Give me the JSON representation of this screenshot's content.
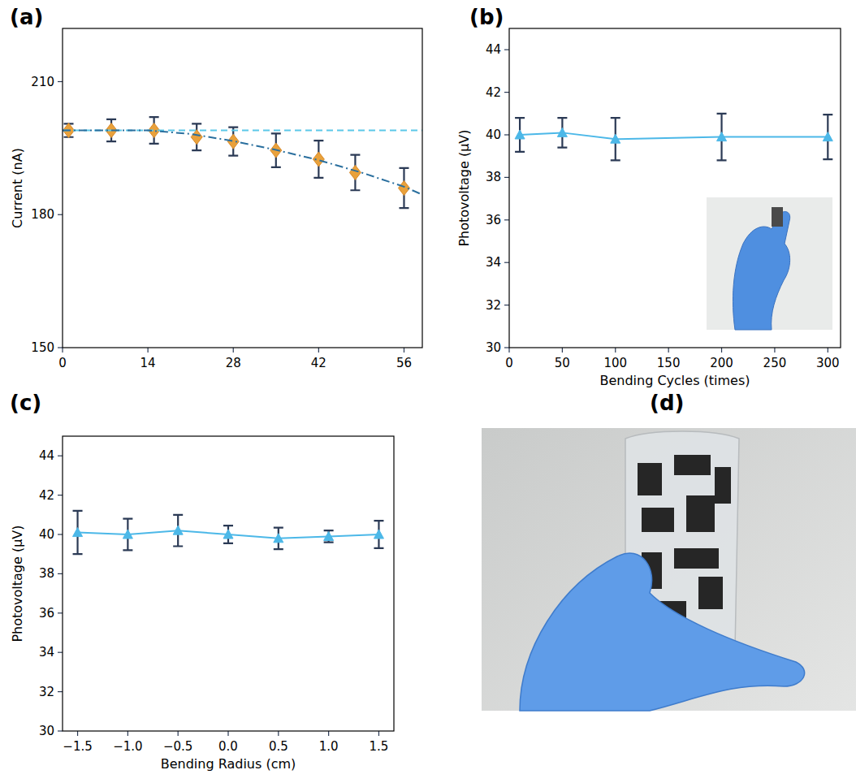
{
  "chart_data": [
    {
      "type": "scatter",
      "panel_label": "(a)",
      "y_label": "Current (nA)",
      "xlim": [
        0,
        59
      ],
      "xticks": [
        0,
        14,
        28,
        42,
        56
      ],
      "ylim": [
        150,
        222
      ],
      "yticks": [
        150,
        180,
        210
      ],
      "series": [
        {
          "type": "scatter",
          "marker": "diamond",
          "color": "#e9a13b",
          "x": [
            1,
            8,
            15,
            22,
            28,
            35,
            42,
            48,
            56
          ],
          "values": [
            199,
            199,
            199,
            197.5,
            196.5,
            194.5,
            192.5,
            189.5,
            186
          ],
          "errors": [
            1.5,
            2.5,
            3,
            3,
            3.2,
            3.8,
            4.2,
            4,
            4.5
          ]
        },
        {
          "type": "line",
          "line_style": "dashed",
          "color": "#5bc8e8",
          "x": [
            0,
            59
          ],
          "values": [
            199,
            199
          ]
        },
        {
          "type": "line",
          "line_style": "dashdot",
          "color": "#2a6f9e",
          "x": [
            0,
            7,
            14,
            21,
            28,
            35,
            42,
            49,
            56,
            59
          ],
          "values": [
            199,
            199,
            199,
            198.2,
            196.6,
            194.6,
            192.3,
            189.5,
            186.3,
            184.5
          ]
        }
      ]
    },
    {
      "type": "line",
      "panel_label": "(b)",
      "x_label": "Bending Cycles (times)",
      "y_label": "Photovoltage (μV)",
      "xlim": [
        0,
        312
      ],
      "xticks": [
        0,
        50,
        100,
        150,
        200,
        250,
        300
      ],
      "ylim": [
        30,
        45
      ],
      "yticks": [
        30,
        32,
        34,
        36,
        38,
        40,
        42,
        44
      ],
      "series": [
        {
          "type": "line",
          "marker": "triangle",
          "color": "#4cb8e8",
          "x": [
            10,
            50,
            100,
            200,
            300
          ],
          "values": [
            40,
            40.1,
            39.8,
            39.9,
            39.9
          ],
          "errors": [
            0.8,
            0.7,
            1.0,
            1.1,
            1.05
          ]
        }
      ]
    },
    {
      "type": "line",
      "panel_label": "(c)",
      "x_label": "Bending Radius (cm)",
      "y_label": "Photovoltage (μV)",
      "xlim": [
        -1.65,
        1.65
      ],
      "xticks": [
        {
          "value": -1.5,
          "label": "−1.5"
        },
        {
          "value": -1,
          "label": "−1.0"
        },
        {
          "value": -0.5,
          "label": "−0.5"
        },
        {
          "value": 0,
          "label": "0.0"
        },
        0.5,
        {
          "value": 1,
          "label": "1.0"
        },
        1.5
      ],
      "ylim": [
        30,
        45
      ],
      "yticks": [
        30,
        32,
        34,
        36,
        38,
        40,
        42,
        44
      ],
      "series": [
        {
          "type": "line",
          "marker": "triangle",
          "color": "#4cb8e8",
          "x": [
            -1.5,
            -1,
            -0.5,
            0,
            0.5,
            1,
            1.5
          ],
          "values": [
            40.1,
            40,
            40.2,
            40,
            39.8,
            39.9,
            40
          ],
          "errors": [
            1.1,
            0.8,
            0.8,
            0.45,
            0.55,
            0.3,
            0.7
          ]
        }
      ]
    }
  ],
  "image_panel": {
    "panel_label": "(d)"
  }
}
